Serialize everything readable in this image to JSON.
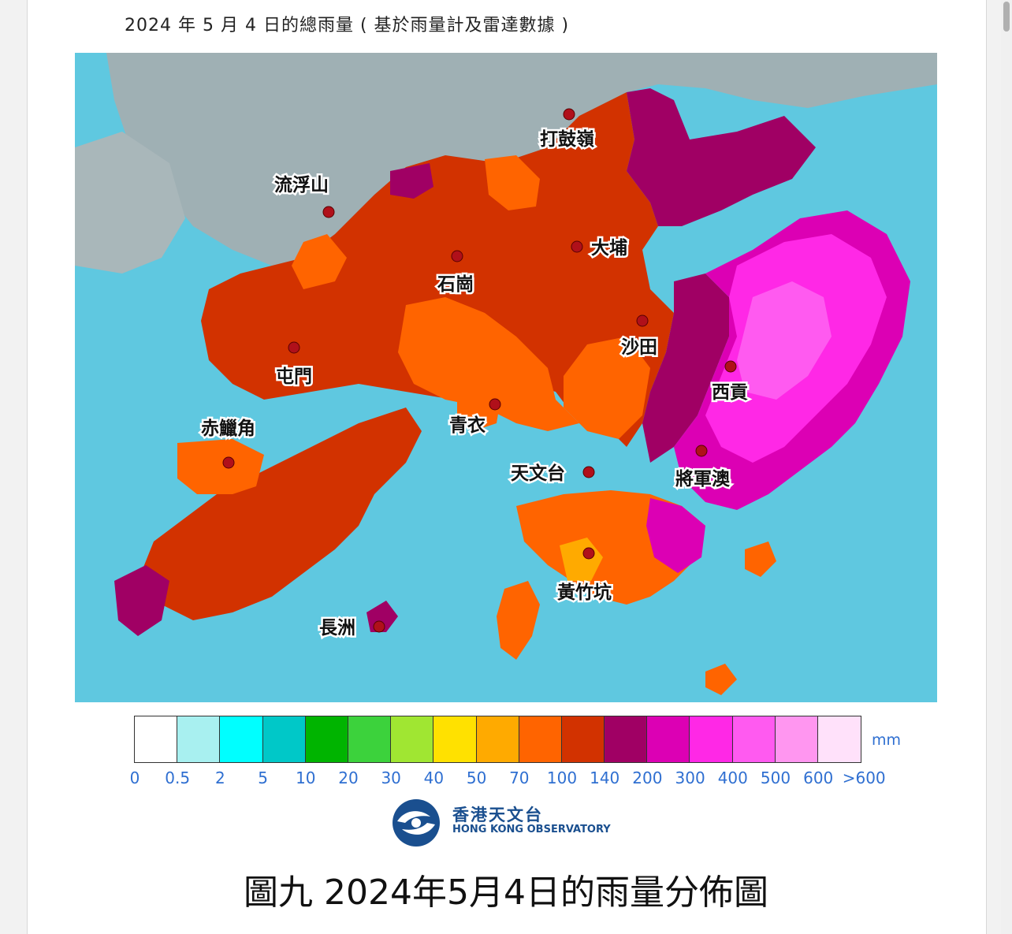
{
  "map_title": "2024 年 5 月 4 日的總雨量 ( 基於雨量計及雷達數據 )",
  "caption": "圖九 2024年5月4日的雨量分佈圖",
  "places": {
    "ta_kwu_ling": "打鼓嶺",
    "lau_fau_shan": "流浮山",
    "tai_po": "大埔",
    "shek_kong": "石崗",
    "sha_tin": "沙田",
    "tuen_mun": "屯門",
    "sai_kung": "西貢",
    "chek_lap_kok": "赤鱲角",
    "tsing_yi": "青衣",
    "tsim_sha_tsui": "天文台",
    "tseung_kwan_o": "將軍澳",
    "wong_chuk_hang": "黃竹坑",
    "cheung_chau": "長洲"
  },
  "legend": {
    "unit": "mm",
    "colors": [
      "#ffffff",
      "#a8f0f0",
      "#00ffff",
      "#00c8c8",
      "#00b400",
      "#3cd23c",
      "#a0e632",
      "#ffe100",
      "#ffaa00",
      "#ff6400",
      "#d23200",
      "#a00064",
      "#dc00b4",
      "#ff28e6",
      "#ff5af0",
      "#ff96f0",
      "#ffe1fa"
    ],
    "labels": [
      "0",
      "0.5",
      "2",
      "5",
      "10",
      "20",
      "30",
      "40",
      "50",
      "70",
      "100",
      "140",
      "200",
      "300",
      "400",
      "500",
      "600",
      ">600"
    ]
  },
  "logo": {
    "name_cn": "香港天文台",
    "name_en": "HONG KONG OBSERVATORY",
    "icon": "hko-emblem-icon"
  }
}
